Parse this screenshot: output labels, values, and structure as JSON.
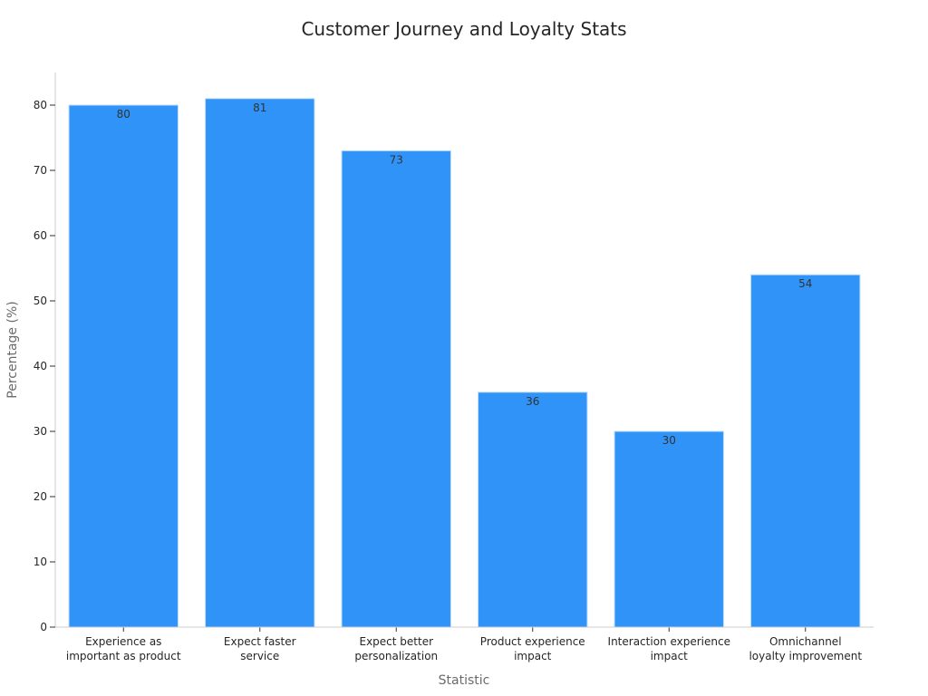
{
  "chart_data": {
    "type": "bar",
    "title": "Customer Journey and Loyalty Stats",
    "xlabel": "Statistic",
    "ylabel": "Percentage (%)",
    "categories": [
      [
        "Experience as",
        "important as product"
      ],
      [
        "Expect faster",
        "service"
      ],
      [
        "Expect better",
        "personalization"
      ],
      [
        "Product experience",
        "impact"
      ],
      [
        "Interaction experience",
        "impact"
      ],
      [
        "Omnichannel",
        "loyalty improvement"
      ]
    ],
    "values": [
      80,
      81,
      73,
      36,
      30,
      54
    ],
    "data_labels": [
      "80",
      "81",
      "73",
      "36",
      "30",
      "54"
    ],
    "ylim": [
      0,
      85
    ],
    "yticks": [
      0,
      10,
      20,
      30,
      40,
      50,
      60,
      70,
      80
    ],
    "grid": false,
    "legend": "none",
    "bar_color": "#3093f8"
  }
}
